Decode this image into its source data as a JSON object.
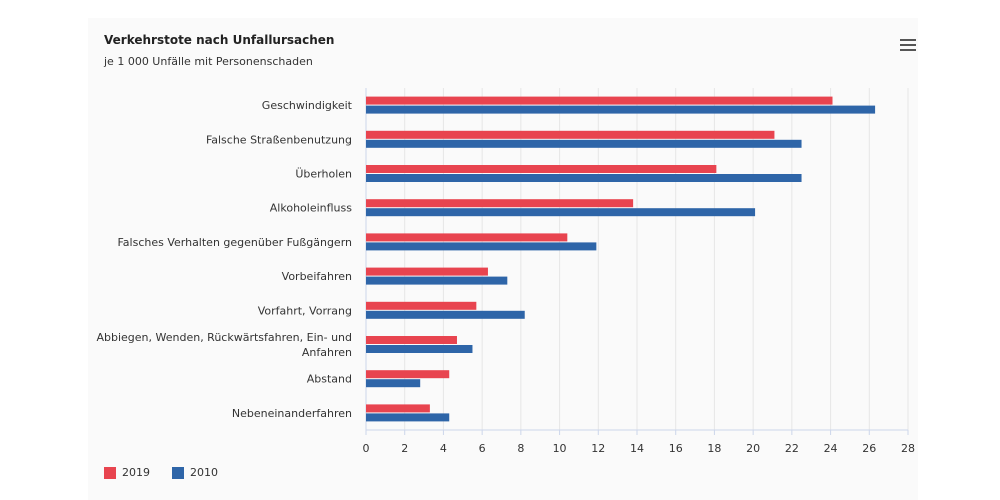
{
  "chart_data": {
    "type": "bar",
    "orientation": "horizontal",
    "title": "Verkehrstote nach Unfallursachen",
    "subtitle": "je 1 000 Unfälle mit Personenschaden",
    "categories": [
      "Geschwindigkeit",
      "Falsche Straßenbenutzung",
      "Überholen",
      "Alkoholeinfluss",
      "Falsches Verhalten gegenüber Fußgängern",
      "Vorbeifahren",
      "Vorfahrt, Vorrang",
      "Abbiegen, Wenden, Rückwärtsfahren, Ein- und Anfahren",
      "Abstand",
      "Nebeneinanderfahren"
    ],
    "category_lines": [
      [
        "Geschwindigkeit"
      ],
      [
        "Falsche Straßenbenutzung"
      ],
      [
        "Überholen"
      ],
      [
        "Alkoholeinfluss"
      ],
      [
        "Falsches Verhalten gegenüber Fußgängern"
      ],
      [
        "Vorbeifahren"
      ],
      [
        "Vorfahrt, Vorrang"
      ],
      [
        "Abbiegen, Wenden, Rückwärtsfahren, Ein- und",
        "Anfahren"
      ],
      [
        "Abstand"
      ],
      [
        "Nebeneinanderfahren"
      ]
    ],
    "series": [
      {
        "name": "2019",
        "color": "#e8444f",
        "values": [
          24.1,
          21.1,
          18.1,
          13.8,
          10.4,
          6.3,
          5.7,
          4.7,
          4.3,
          3.3
        ]
      },
      {
        "name": "2010",
        "color": "#2e65a8",
        "values": [
          26.3,
          22.5,
          22.5,
          20.1,
          11.9,
          7.3,
          8.2,
          5.5,
          2.8,
          4.3
        ]
      }
    ],
    "xlim": [
      0,
      28
    ],
    "xticks": [
      0,
      2,
      4,
      6,
      8,
      10,
      12,
      14,
      16,
      18,
      20,
      22,
      24,
      26,
      28
    ],
    "grid": true,
    "legend_position": "bottom-left"
  },
  "menu_icon": "hamburger-menu-icon"
}
